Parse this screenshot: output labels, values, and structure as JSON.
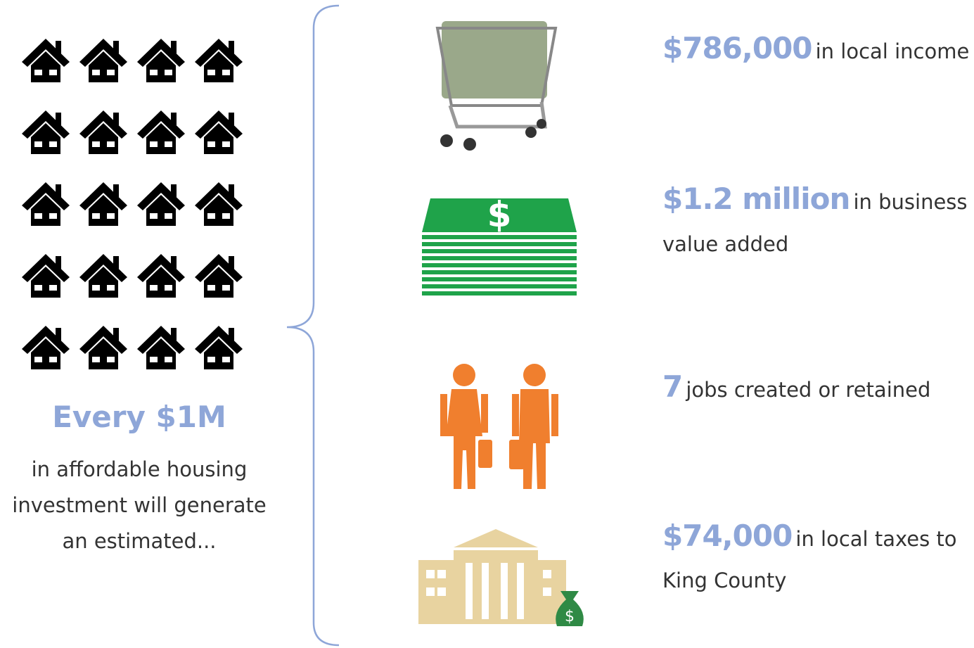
{
  "left": {
    "headline": "Every $1M",
    "body_lines": [
      "in affordable housing",
      "investment will generate",
      "an estimated..."
    ]
  },
  "items": [
    {
      "highlight": "$786,000",
      "text": "in local income"
    },
    {
      "highlight": "$1.2 million",
      "text": "in business",
      "continuation": "value added"
    },
    {
      "highlight": "7",
      "text": "jobs created or retained"
    },
    {
      "highlight": "$74,000",
      "text": "in local taxes to",
      "continuation": "King County"
    }
  ]
}
